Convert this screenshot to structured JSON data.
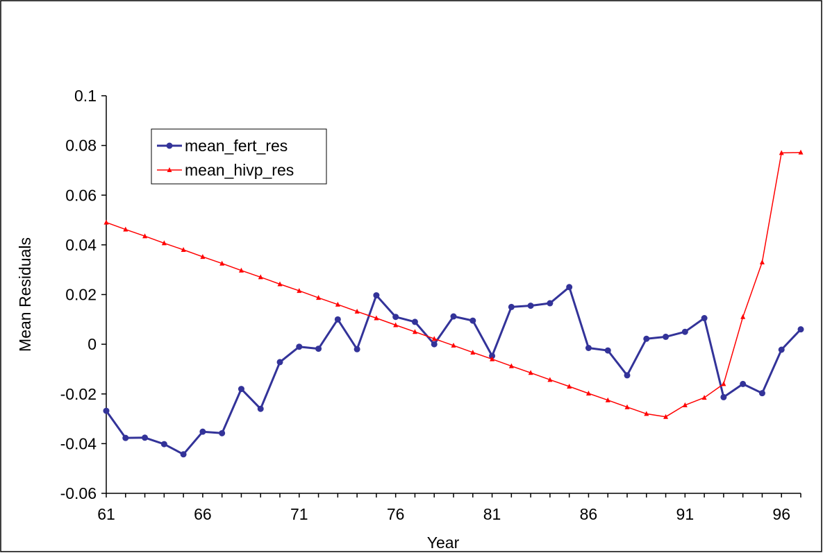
{
  "chart_data": {
    "type": "line",
    "title": "",
    "xlabel": "Year",
    "ylabel": "Mean Residuals",
    "xlim": [
      61,
      97
    ],
    "ylim": [
      -0.06,
      0.1
    ],
    "x_ticks": [
      61,
      66,
      71,
      76,
      81,
      86,
      91,
      96
    ],
    "x_tick_labels": [
      "61",
      "66",
      "71",
      "76",
      "81",
      "86",
      "91",
      "96"
    ],
    "y_ticks": [
      -0.06,
      -0.04,
      -0.02,
      0,
      0.02,
      0.04,
      0.06,
      0.08,
      0.1
    ],
    "y_tick_labels": [
      "-0.06",
      "-0.04",
      "-0.02",
      "0",
      "0.02",
      "0.04",
      "0.06",
      "0.08",
      "0.1"
    ],
    "grid": false,
    "legend_position": "top-left",
    "x": [
      61,
      62,
      63,
      64,
      65,
      66,
      67,
      68,
      69,
      70,
      71,
      72,
      73,
      74,
      75,
      76,
      77,
      78,
      79,
      80,
      81,
      82,
      83,
      84,
      85,
      86,
      87,
      88,
      89,
      90,
      91,
      92,
      93,
      94,
      95,
      96,
      97
    ],
    "series": [
      {
        "name": "mean_fert_res",
        "color": "#333399",
        "marker": "circle",
        "values": [
          -0.0268,
          -0.0377,
          -0.0376,
          -0.0402,
          -0.0443,
          -0.0352,
          -0.0358,
          -0.018,
          -0.026,
          -0.0072,
          -0.001,
          -0.0018,
          0.01,
          -0.002,
          0.0197,
          0.011,
          0.009,
          0.0,
          0.0112,
          0.0095,
          -0.0047,
          0.015,
          0.0155,
          0.0165,
          0.023,
          -0.0015,
          -0.0025,
          -0.0125,
          0.0022,
          0.003,
          0.005,
          0.0105,
          -0.0213,
          -0.016,
          -0.0197,
          -0.0022,
          0.006
        ]
      },
      {
        "name": "mean_hivp_res",
        "color": "#ff0000",
        "marker": "triangle",
        "values": [
          0.049,
          0.0462,
          0.0435,
          0.0407,
          0.038,
          0.0352,
          0.0325,
          0.0297,
          0.027,
          0.0242,
          0.0215,
          0.0187,
          0.016,
          0.0132,
          0.0105,
          0.0077,
          0.005,
          0.0022,
          -0.0005,
          -0.0033,
          -0.006,
          -0.0088,
          -0.0115,
          -0.0143,
          -0.017,
          -0.0198,
          -0.0225,
          -0.0253,
          -0.028,
          -0.0292,
          -0.0245,
          -0.0215,
          -0.016,
          0.011,
          0.033,
          0.077,
          0.0772
        ]
      }
    ]
  }
}
